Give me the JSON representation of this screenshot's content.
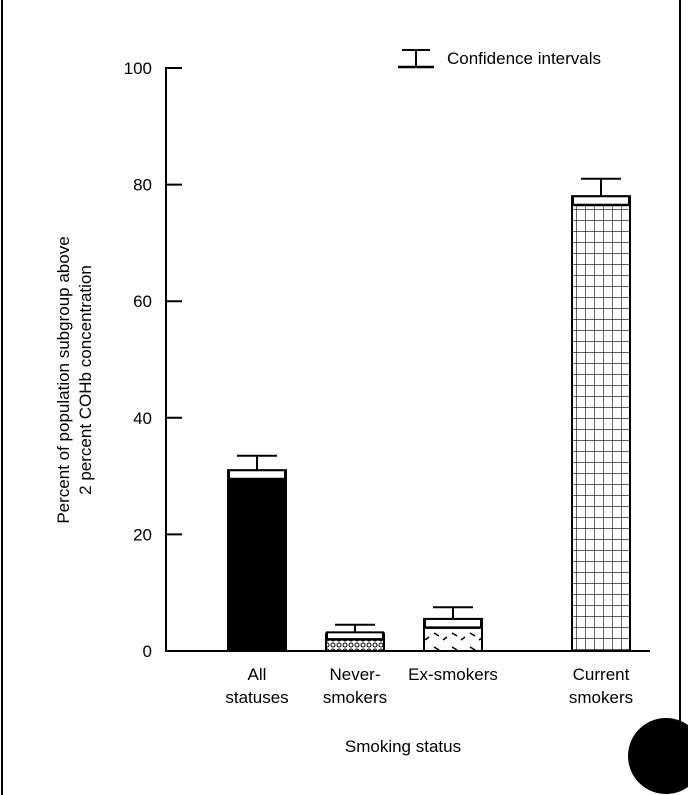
{
  "chart_data": {
    "type": "bar",
    "categories": [
      [
        "All",
        "statuses"
      ],
      [
        "Never-",
        "smokers"
      ],
      [
        "Ex-smokers"
      ],
      [
        "Current",
        "smokers"
      ]
    ],
    "values": [
      31,
      3,
      5.5,
      78
    ],
    "error_low": [
      29.5,
      2,
      4,
      76.5
    ],
    "error_high": [
      33.5,
      4.5,
      7.5,
      81
    ],
    "bar_fills": [
      "solid-black",
      "dots",
      "dashes",
      "grid"
    ],
    "xlabel": "Smoking status",
    "ylabel_lines": [
      "Percent of population subgroup above",
      "2 percent COHb  concentration"
    ],
    "ylim": [
      0,
      100
    ],
    "yticks": [
      0,
      20,
      40,
      60,
      80,
      100
    ],
    "legend": {
      "label": "Confidence intervals",
      "position": "top-right"
    },
    "grid": false
  }
}
